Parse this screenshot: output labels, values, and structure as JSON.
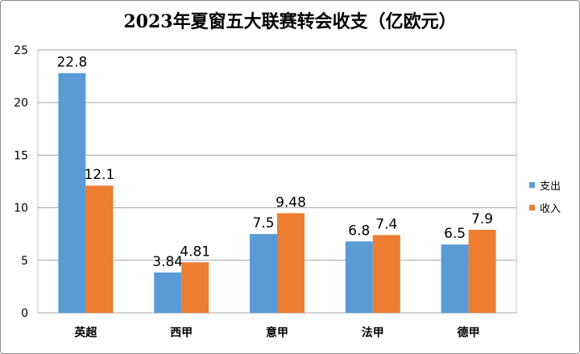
{
  "chart_data": {
    "type": "bar",
    "title": "2023年夏窗五大联赛转会收支（亿欧元）",
    "categories": [
      "英超",
      "西甲",
      "意甲",
      "法甲",
      "德甲"
    ],
    "series": [
      {
        "name": "支出",
        "color": "#5b9bd5",
        "values": [
          22.8,
          3.84,
          7.5,
          6.8,
          6.5
        ],
        "labels": [
          "22.8",
          "3.84",
          "7.5",
          "6.8",
          "6.5"
        ]
      },
      {
        "name": "收入",
        "color": "#ed7d31",
        "values": [
          12.1,
          4.81,
          9.48,
          7.4,
          7.9
        ],
        "labels": [
          "12.1",
          "4.81",
          "9.48",
          "7.4",
          "7.9"
        ]
      }
    ],
    "ylim": [
      0,
      25
    ],
    "yticks": [
      "0",
      "5",
      "10",
      "15",
      "20",
      "25"
    ],
    "grid": true,
    "legend_position": "right"
  }
}
